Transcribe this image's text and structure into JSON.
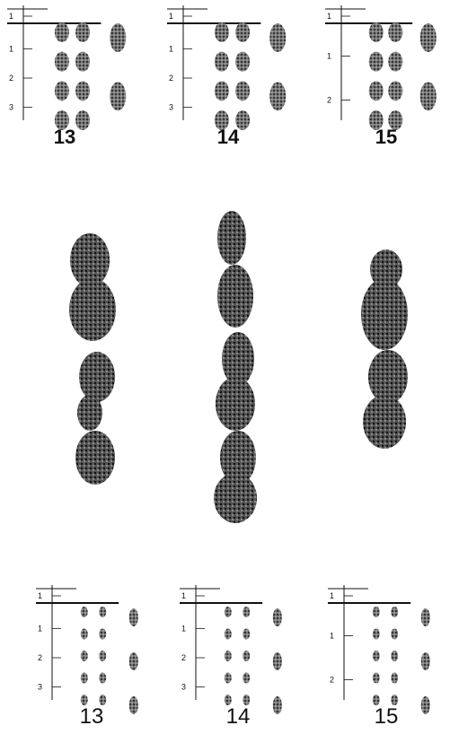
{
  "top": [
    {
      "label": "13",
      "bands": [
        "1",
        "1",
        "2",
        "3"
      ]
    },
    {
      "label": "14",
      "bands": [
        "1",
        "1",
        "2",
        "3"
      ]
    },
    {
      "label": "15",
      "bands": [
        "1",
        "1",
        "2"
      ]
    }
  ],
  "bottom": [
    {
      "label": "13",
      "bands": [
        "1",
        "1",
        "2",
        "3"
      ]
    },
    {
      "label": "14",
      "bands": [
        "1",
        "1",
        "2",
        "3"
      ]
    },
    {
      "label": "15",
      "bands": [
        "1",
        "1",
        "2"
      ]
    }
  ]
}
